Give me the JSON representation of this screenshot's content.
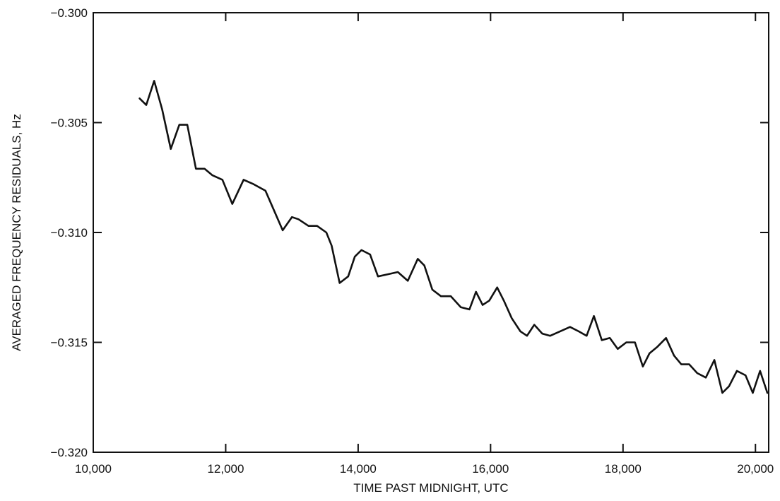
{
  "chart_data": {
    "type": "line",
    "title": "",
    "xlabel": "TIME PAST MIDNIGHT, UTC",
    "ylabel": "AVERAGED FREQUENCY RESIDUALS, Hz",
    "xlim": [
      10000,
      20200
    ],
    "ylim": [
      -0.32,
      -0.3
    ],
    "x_ticks": [
      10000,
      12000,
      14000,
      16000,
      18000,
      20000
    ],
    "x_tick_labels": [
      "10,000",
      "12,000",
      "14,000",
      "16,000",
      "18,000",
      "20,000"
    ],
    "y_ticks": [
      -0.3,
      -0.305,
      -0.31,
      -0.315,
      -0.32
    ],
    "y_tick_labels": [
      "−0.300",
      "−0.305",
      "−0.310",
      "−0.315",
      "−0.320"
    ],
    "grid": false,
    "line_color": "#111111",
    "series": [
      {
        "x": [
          10700,
          10800,
          10920,
          11040,
          11170,
          11300,
          11420,
          11550,
          11680,
          11800,
          11950,
          12100,
          12270,
          12420,
          12600,
          12860,
          13000,
          13100,
          13250,
          13380,
          13520,
          13600,
          13720,
          13850,
          13950,
          14050,
          14180,
          14300,
          14450,
          14600,
          14750,
          14900,
          15000,
          15120,
          15250,
          15400,
          15550,
          15680,
          15780,
          15880,
          15980,
          16100,
          16200,
          16320,
          16450,
          16550,
          16660,
          16780,
          16900,
          17050,
          17200,
          17330,
          17450,
          17560,
          17680,
          17800,
          17920,
          18050,
          18180,
          18300,
          18400,
          18520,
          18650,
          18770,
          18880,
          19000,
          19120,
          19250,
          19380,
          19500,
          19600,
          19720,
          19850,
          19960,
          20070,
          20180
        ],
        "y": [
          -0.3039,
          -0.3042,
          -0.3031,
          -0.3044,
          -0.3062,
          -0.3051,
          -0.3051,
          -0.3071,
          -0.3071,
          -0.3074,
          -0.3076,
          -0.3087,
          -0.3076,
          -0.3078,
          -0.3081,
          -0.3099,
          -0.3093,
          -0.3094,
          -0.3097,
          -0.3097,
          -0.31,
          -0.3106,
          -0.3123,
          -0.312,
          -0.3111,
          -0.3108,
          -0.311,
          -0.312,
          -0.3119,
          -0.3118,
          -0.3122,
          -0.3112,
          -0.3115,
          -0.3126,
          -0.3129,
          -0.3129,
          -0.3134,
          -0.3135,
          -0.3127,
          -0.3133,
          -0.3131,
          -0.3125,
          -0.3131,
          -0.3139,
          -0.3145,
          -0.3147,
          -0.3142,
          -0.3146,
          -0.3147,
          -0.3145,
          -0.3143,
          -0.3145,
          -0.3147,
          -0.3138,
          -0.3149,
          -0.3148,
          -0.3153,
          -0.315,
          -0.315,
          -0.3161,
          -0.3155,
          -0.3152,
          -0.3148,
          -0.3156,
          -0.316,
          -0.316,
          -0.3164,
          -0.3166,
          -0.3158,
          -0.3173,
          -0.317,
          -0.3163,
          -0.3165,
          -0.3173,
          -0.3163,
          -0.3173
        ]
      }
    ]
  }
}
